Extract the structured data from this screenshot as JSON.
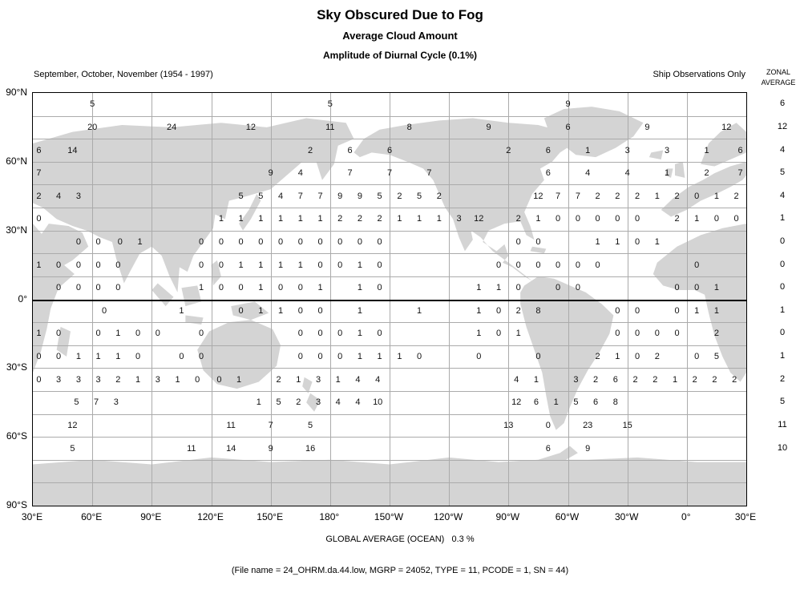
{
  "header": {
    "title": "Sky Obscured Due to Fog",
    "subtitle1": "Average Cloud Amount",
    "subtitle2": "Amplitude of Diurnal Cycle (0.1%)",
    "season": "September, October, November (1954 - 1997)",
    "source": "Ship Observations Only",
    "zonal_line1": "ZONAL",
    "zonal_line2": "AVERAGE"
  },
  "footer": {
    "global_average": "GLOBAL AVERAGE (OCEAN)   0.3 %",
    "file_info": "(File name = 24_OHRM.da.44.low, MGRP = 24052, TYPE = 11, PCODE = 1, SN = 44)"
  },
  "colors": {
    "land": "#d4d4d4",
    "grid": "#ababab",
    "equator": "#000000",
    "frame": "#000000",
    "text": "#000000"
  },
  "axes": {
    "lon_ticks": [
      {
        "lon": 30,
        "label": "30°E"
      },
      {
        "lon": 60,
        "label": "60°E"
      },
      {
        "lon": 90,
        "label": "90°E"
      },
      {
        "lon": 120,
        "label": "120°E"
      },
      {
        "lon": 150,
        "label": "150°E"
      },
      {
        "lon": 180,
        "label": "180°"
      },
      {
        "lon": 210,
        "label": "150°W"
      },
      {
        "lon": 240,
        "label": "120°W"
      },
      {
        "lon": 270,
        "label": "90°W"
      },
      {
        "lon": 300,
        "label": "60°W"
      },
      {
        "lon": 330,
        "label": "30°W"
      },
      {
        "lon": 360,
        "label": "0°"
      },
      {
        "lon": 390,
        "label": "30°E"
      }
    ],
    "lat_ticks": [
      {
        "lat": 90,
        "label": "90°N"
      },
      {
        "lat": 60,
        "label": "60°N"
      },
      {
        "lat": 30,
        "label": "30°N"
      },
      {
        "lat": 0,
        "label": "0°"
      },
      {
        "lat": -30,
        "label": "30°S"
      },
      {
        "lat": -60,
        "label": "60°S"
      },
      {
        "lat": -90,
        "label": "90°S"
      }
    ]
  },
  "chart_data": {
    "type": "heatmap",
    "title": "Sky Obscured Due to Fog - Amplitude of Diurnal Cycle",
    "units": "0.1 %",
    "period": "September, October, November (1954 - 1997)",
    "source": "Ship Observations Only",
    "projection": "cylindrical, longitude 30°E eastward to 30°E",
    "lon_range": [
      30,
      390
    ],
    "lat_range": [
      -90,
      90
    ],
    "grid": "30° lon x 10° lat",
    "global_average_ocean": "0.3 %",
    "rows": [
      {
        "lat": 85,
        "zonal_average": 6,
        "values": [
          [
            60,
            5
          ],
          [
            180,
            5
          ],
          [
            300,
            9
          ]
        ]
      },
      {
        "lat": 75,
        "zonal_average": 12,
        "values": [
          [
            60,
            20
          ],
          [
            100,
            24
          ],
          [
            140,
            12
          ],
          [
            180,
            11
          ],
          [
            220,
            8
          ],
          [
            260,
            9
          ],
          [
            300,
            6
          ],
          [
            340,
            9
          ],
          [
            380,
            12
          ]
        ]
      },
      {
        "lat": 65,
        "zonal_average": 4,
        "values": [
          [
            33,
            6
          ],
          [
            50,
            14
          ],
          [
            170,
            2
          ],
          [
            190,
            6
          ],
          [
            210,
            6
          ],
          [
            270,
            2
          ],
          [
            290,
            6
          ],
          [
            310,
            1
          ],
          [
            330,
            3
          ],
          [
            350,
            3
          ],
          [
            370,
            1
          ],
          [
            387,
            6
          ]
        ]
      },
      {
        "lat": 55,
        "zonal_average": 5,
        "values": [
          [
            33,
            7
          ],
          [
            150,
            9
          ],
          [
            165,
            4
          ],
          [
            190,
            7
          ],
          [
            210,
            7
          ],
          [
            230,
            7
          ],
          [
            290,
            6
          ],
          [
            310,
            4
          ],
          [
            330,
            4
          ],
          [
            350,
            1
          ],
          [
            370,
            2
          ],
          [
            387,
            7
          ]
        ]
      },
      {
        "lat": 45,
        "zonal_average": 4,
        "values": [
          [
            33,
            2
          ],
          [
            43,
            4
          ],
          [
            53,
            3
          ],
          [
            135,
            5
          ],
          [
            145,
            5
          ],
          [
            155,
            4
          ],
          [
            165,
            7
          ],
          [
            175,
            7
          ],
          [
            185,
            9
          ],
          [
            195,
            9
          ],
          [
            205,
            5
          ],
          [
            215,
            2
          ],
          [
            225,
            5
          ],
          [
            235,
            2
          ],
          [
            285,
            12
          ],
          [
            295,
            7
          ],
          [
            305,
            7
          ],
          [
            315,
            2
          ],
          [
            325,
            2
          ],
          [
            335,
            2
          ],
          [
            345,
            1
          ],
          [
            355,
            2
          ],
          [
            365,
            0
          ],
          [
            375,
            1
          ],
          [
            385,
            2
          ]
        ]
      },
      {
        "lat": 35,
        "zonal_average": 1,
        "values": [
          [
            33,
            0
          ],
          [
            125,
            1
          ],
          [
            135,
            1
          ],
          [
            145,
            1
          ],
          [
            155,
            1
          ],
          [
            165,
            1
          ],
          [
            175,
            1
          ],
          [
            185,
            2
          ],
          [
            195,
            2
          ],
          [
            205,
            2
          ],
          [
            215,
            1
          ],
          [
            225,
            1
          ],
          [
            235,
            1
          ],
          [
            245,
            3
          ],
          [
            255,
            12
          ],
          [
            275,
            2
          ],
          [
            285,
            1
          ],
          [
            295,
            0
          ],
          [
            305,
            0
          ],
          [
            315,
            0
          ],
          [
            325,
            0
          ],
          [
            335,
            0
          ],
          [
            355,
            2
          ],
          [
            365,
            1
          ],
          [
            375,
            0
          ],
          [
            385,
            0
          ]
        ]
      },
      {
        "lat": 25,
        "zonal_average": 0,
        "values": [
          [
            53,
            0
          ],
          [
            63,
            0
          ],
          [
            74,
            0
          ],
          [
            84,
            1
          ],
          [
            115,
            0
          ],
          [
            125,
            0
          ],
          [
            135,
            0
          ],
          [
            145,
            0
          ],
          [
            155,
            0
          ],
          [
            165,
            0
          ],
          [
            175,
            0
          ],
          [
            185,
            0
          ],
          [
            195,
            0
          ],
          [
            205,
            0
          ],
          [
            275,
            0
          ],
          [
            285,
            0
          ],
          [
            315,
            1
          ],
          [
            325,
            1
          ],
          [
            335,
            0
          ],
          [
            345,
            1
          ]
        ]
      },
      {
        "lat": 15,
        "zonal_average": 0,
        "values": [
          [
            33,
            1
          ],
          [
            43,
            0
          ],
          [
            53,
            0
          ],
          [
            63,
            0
          ],
          [
            73,
            0
          ],
          [
            115,
            0
          ],
          [
            125,
            0
          ],
          [
            135,
            1
          ],
          [
            145,
            1
          ],
          [
            155,
            1
          ],
          [
            165,
            1
          ],
          [
            175,
            0
          ],
          [
            185,
            0
          ],
          [
            195,
            1
          ],
          [
            205,
            0
          ],
          [
            265,
            0
          ],
          [
            275,
            0
          ],
          [
            285,
            0
          ],
          [
            295,
            0
          ],
          [
            305,
            0
          ],
          [
            315,
            0
          ],
          [
            365,
            0
          ]
        ]
      },
      {
        "lat": 5,
        "zonal_average": 0,
        "values": [
          [
            43,
            0
          ],
          [
            53,
            0
          ],
          [
            63,
            0
          ],
          [
            73,
            0
          ],
          [
            115,
            1
          ],
          [
            125,
            0
          ],
          [
            135,
            0
          ],
          [
            145,
            1
          ],
          [
            155,
            0
          ],
          [
            165,
            0
          ],
          [
            175,
            1
          ],
          [
            195,
            1
          ],
          [
            205,
            0
          ],
          [
            255,
            1
          ],
          [
            265,
            1
          ],
          [
            275,
            0
          ],
          [
            295,
            0
          ],
          [
            305,
            0
          ],
          [
            355,
            0
          ],
          [
            365,
            0
          ],
          [
            375,
            1
          ]
        ]
      },
      {
        "lat": -5,
        "zonal_average": 1,
        "values": [
          [
            66,
            0
          ],
          [
            105,
            1
          ],
          [
            135,
            0
          ],
          [
            145,
            1
          ],
          [
            155,
            1
          ],
          [
            165,
            0
          ],
          [
            175,
            0
          ],
          [
            195,
            1
          ],
          [
            225,
            1
          ],
          [
            255,
            1
          ],
          [
            265,
            0
          ],
          [
            275,
            2
          ],
          [
            285,
            8
          ],
          [
            325,
            0
          ],
          [
            335,
            0
          ],
          [
            355,
            0
          ],
          [
            365,
            1
          ],
          [
            375,
            1
          ]
        ]
      },
      {
        "lat": -15,
        "zonal_average": 0,
        "values": [
          [
            33,
            1
          ],
          [
            43,
            0
          ],
          [
            63,
            0
          ],
          [
            73,
            1
          ],
          [
            83,
            0
          ],
          [
            93,
            0
          ],
          [
            115,
            0
          ],
          [
            165,
            0
          ],
          [
            175,
            0
          ],
          [
            185,
            0
          ],
          [
            195,
            1
          ],
          [
            205,
            0
          ],
          [
            255,
            1
          ],
          [
            265,
            0
          ],
          [
            275,
            1
          ],
          [
            325,
            0
          ],
          [
            335,
            0
          ],
          [
            345,
            0
          ],
          [
            355,
            0
          ],
          [
            375,
            2
          ]
        ]
      },
      {
        "lat": -25,
        "zonal_average": 1,
        "values": [
          [
            33,
            0
          ],
          [
            43,
            0
          ],
          [
            53,
            1
          ],
          [
            63,
            1
          ],
          [
            73,
            1
          ],
          [
            83,
            0
          ],
          [
            105,
            0
          ],
          [
            115,
            0
          ],
          [
            165,
            0
          ],
          [
            175,
            0
          ],
          [
            185,
            0
          ],
          [
            195,
            1
          ],
          [
            205,
            1
          ],
          [
            215,
            1
          ],
          [
            225,
            0
          ],
          [
            255,
            0
          ],
          [
            285,
            0
          ],
          [
            315,
            2
          ],
          [
            325,
            1
          ],
          [
            335,
            0
          ],
          [
            345,
            2
          ],
          [
            365,
            0
          ],
          [
            375,
            5
          ]
        ]
      },
      {
        "lat": -35,
        "zonal_average": 2,
        "values": [
          [
            33,
            0
          ],
          [
            43,
            3
          ],
          [
            53,
            3
          ],
          [
            63,
            3
          ],
          [
            73,
            2
          ],
          [
            83,
            1
          ],
          [
            93,
            3
          ],
          [
            103,
            1
          ],
          [
            113,
            0
          ],
          [
            124,
            0
          ],
          [
            134,
            1
          ],
          [
            154,
            2
          ],
          [
            164,
            1
          ],
          [
            174,
            3
          ],
          [
            184,
            1
          ],
          [
            194,
            4
          ],
          [
            204,
            4
          ],
          [
            274,
            4
          ],
          [
            284,
            1
          ],
          [
            304,
            3
          ],
          [
            314,
            2
          ],
          [
            324,
            6
          ],
          [
            334,
            2
          ],
          [
            344,
            2
          ],
          [
            354,
            1
          ],
          [
            364,
            2
          ],
          [
            374,
            2
          ],
          [
            384,
            2
          ]
        ]
      },
      {
        "lat": -45,
        "zonal_average": 5,
        "values": [
          [
            52,
            5
          ],
          [
            62,
            7
          ],
          [
            72,
            3
          ],
          [
            144,
            1
          ],
          [
            154,
            5
          ],
          [
            164,
            2
          ],
          [
            174,
            3
          ],
          [
            184,
            4
          ],
          [
            194,
            4
          ],
          [
            204,
            10
          ],
          [
            274,
            12
          ],
          [
            284,
            6
          ],
          [
            294,
            1
          ],
          [
            304,
            5
          ],
          [
            314,
            6
          ],
          [
            324,
            8
          ]
        ]
      },
      {
        "lat": -55,
        "zonal_average": 11,
        "values": [
          [
            50,
            12
          ],
          [
            130,
            11
          ],
          [
            150,
            7
          ],
          [
            170,
            5
          ],
          [
            270,
            13
          ],
          [
            290,
            0
          ],
          [
            310,
            23
          ],
          [
            330,
            15
          ]
        ]
      },
      {
        "lat": -65,
        "zonal_average": 10,
        "values": [
          [
            50,
            5
          ],
          [
            110,
            11
          ],
          [
            130,
            14
          ],
          [
            150,
            9
          ],
          [
            170,
            16
          ],
          [
            290,
            6
          ],
          [
            310,
            9
          ]
        ]
      }
    ]
  }
}
